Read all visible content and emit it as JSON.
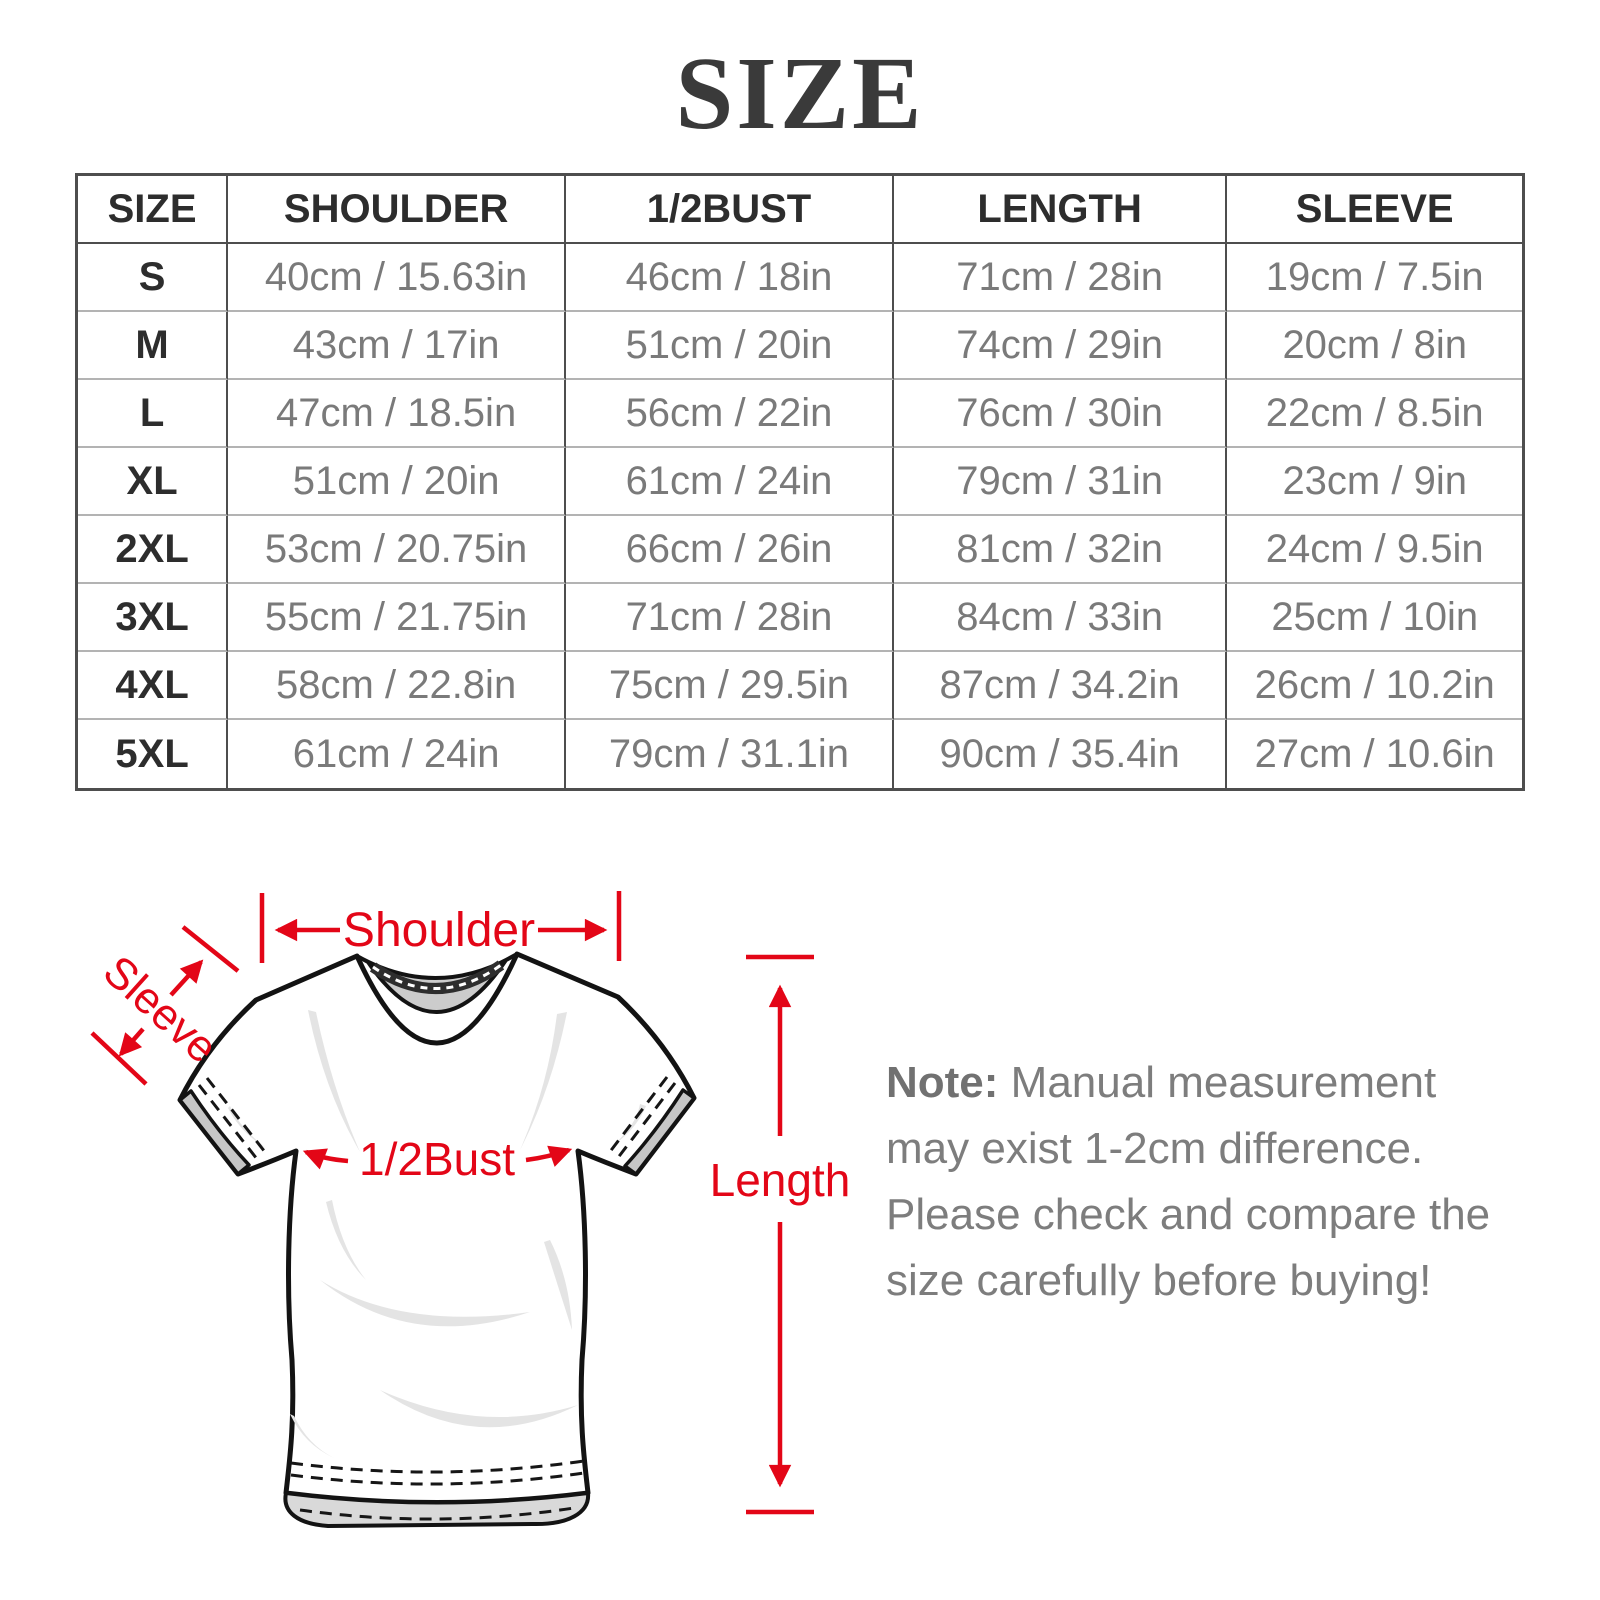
{
  "chart_data": {
    "type": "table",
    "title": "SIZE",
    "columns": [
      "SIZE",
      "SHOULDER",
      "1/2BUST",
      "LENGTH",
      "SLEEVE"
    ],
    "rows": [
      [
        "S",
        "40cm / 15.63in",
        "46cm / 18in",
        "71cm / 28in",
        "19cm / 7.5in"
      ],
      [
        "M",
        "43cm / 17in",
        "51cm / 20in",
        "74cm / 29in",
        "20cm / 8in"
      ],
      [
        "L",
        "47cm / 18.5in",
        "56cm / 22in",
        "76cm / 30in",
        "22cm / 8.5in"
      ],
      [
        "XL",
        "51cm / 20in",
        "61cm / 24in",
        "79cm / 31in",
        "23cm / 9in"
      ],
      [
        "2XL",
        "53cm / 20.75in",
        "66cm / 26in",
        "81cm / 32in",
        "24cm / 9.5in"
      ],
      [
        "3XL",
        "55cm / 21.75in",
        "71cm / 28in",
        "84cm / 33in",
        "25cm / 10in"
      ],
      [
        "4XL",
        "58cm / 22.8in",
        "75cm / 29.5in",
        "87cm / 34.2in",
        "26cm / 10.2in"
      ],
      [
        "5XL",
        "61cm / 24in",
        "79cm / 31.1in",
        "90cm / 35.4in",
        "27cm / 10.6in"
      ]
    ]
  },
  "diagram": {
    "labels": {
      "shoulder": "Shoulder",
      "sleeve": "Sleeve",
      "bust": "1/2Bust",
      "length": "Length"
    },
    "accent_color": "#e30617"
  },
  "note": {
    "label": "Note:",
    "text": " Manual measurement may exist 1-2cm difference. Please check and compare the size carefully before buying!"
  }
}
